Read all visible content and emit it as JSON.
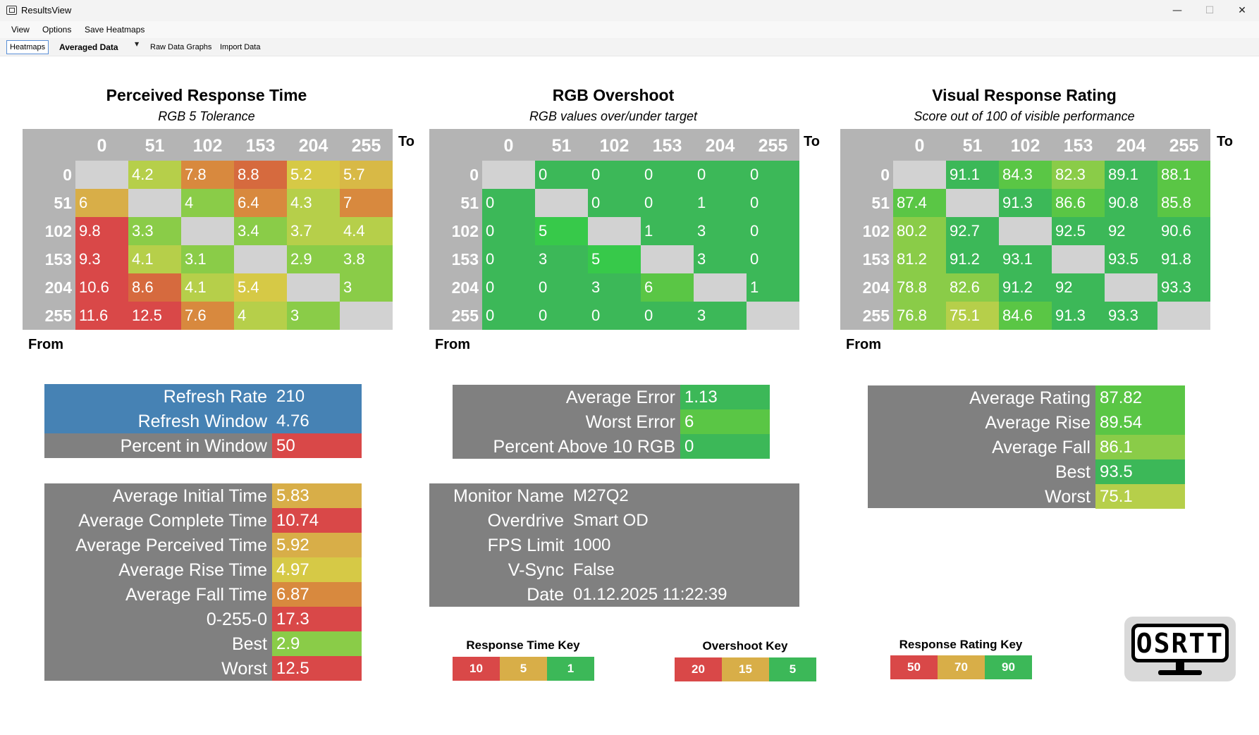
{
  "window": {
    "title": "ResultsView",
    "minimize_icon": "minimize-icon",
    "maximize_icon": "maximize-icon",
    "close_icon": "close-icon"
  },
  "menu": [
    "View",
    "Options",
    "Save Heatmaps"
  ],
  "toolbar": {
    "heatmaps": "Heatmaps",
    "mode": "Averaged Data",
    "raw": "Raw Data Graphs",
    "import": "Import Data"
  },
  "colors": {
    "gray_header": "#b4b4b4",
    "blank": "#d2d2d2",
    "stat_bg": "#808080",
    "blue": "#4682b4",
    "red": "#d94848",
    "orange": "#d8893e",
    "amber": "#d8ae48",
    "yellow": "#d6c946",
    "yellowgreen": "#b6cf4a",
    "lightgreen": "#8acc48",
    "midgreen": "#5ac645",
    "green": "#3cb858",
    "brightgreen": "#37c94a"
  },
  "heatmaps": {
    "headers": [
      "0",
      "51",
      "102",
      "153",
      "204",
      "255"
    ],
    "to_label": "To",
    "from_label": "From",
    "perceived": {
      "title": "Perceived Response Time",
      "subtitle": "RGB 5 Tolerance",
      "rows": [
        [
          null,
          "4.2",
          "7.8",
          "8.8",
          "5.2",
          "5.7"
        ],
        [
          "6",
          null,
          "4",
          "6.4",
          "4.3",
          "7"
        ],
        [
          "9.8",
          "3.3",
          null,
          "3.4",
          "3.7",
          "4.4"
        ],
        [
          "9.3",
          "4.1",
          "3.1",
          null,
          "2.9",
          "3.8"
        ],
        [
          "10.6",
          "8.6",
          "4.1",
          "5.4",
          null,
          "3"
        ],
        [
          "11.6",
          "12.5",
          "7.6",
          "4",
          "3",
          null
        ]
      ]
    },
    "overshoot": {
      "title": "RGB Overshoot",
      "subtitle": "RGB values over/under target",
      "rows": [
        [
          null,
          "0",
          "0",
          "0",
          "0",
          "0"
        ],
        [
          "0",
          null,
          "0",
          "0",
          "1",
          "0"
        ],
        [
          "0",
          "5",
          null,
          "1",
          "3",
          "0"
        ],
        [
          "0",
          "3",
          "5",
          null,
          "3",
          "0"
        ],
        [
          "0",
          "0",
          "3",
          "6",
          null,
          "1"
        ],
        [
          "0",
          "0",
          "0",
          "0",
          "3",
          null
        ]
      ]
    },
    "rating": {
      "title": "Visual Response Rating",
      "subtitle": "Score out of 100 of visible performance",
      "rows": [
        [
          null,
          "91.1",
          "84.3",
          "82.3",
          "89.1",
          "88.1"
        ],
        [
          "87.4",
          null,
          "91.3",
          "86.6",
          "90.8",
          "85.8"
        ],
        [
          "80.2",
          "92.7",
          null,
          "92.5",
          "92",
          "90.6"
        ],
        [
          "81.2",
          "91.2",
          "93.1",
          null,
          "93.5",
          "91.8"
        ],
        [
          "78.8",
          "82.6",
          "91.2",
          "92",
          null,
          "93.3"
        ],
        [
          "76.8",
          "75.1",
          "84.6",
          "91.3",
          "93.3",
          null
        ]
      ]
    }
  },
  "refresh": [
    {
      "label": "Refresh Rate",
      "value": "210"
    },
    {
      "label": "Refresh Window",
      "value": "4.76"
    },
    {
      "label": "Percent in Window",
      "value": "50"
    }
  ],
  "response_stats": [
    {
      "label": "Average Initial Time",
      "value": "5.83"
    },
    {
      "label": "Average Complete Time",
      "value": "10.74"
    },
    {
      "label": "Average Perceived Time",
      "value": "5.92"
    },
    {
      "label": "Average Rise Time",
      "value": "4.97"
    },
    {
      "label": "Average Fall Time",
      "value": "6.87"
    },
    {
      "label": "0-255-0",
      "value": "17.3"
    },
    {
      "label": "Best",
      "value": "2.9"
    },
    {
      "label": "Worst",
      "value": "12.5"
    }
  ],
  "overshoot_stats": [
    {
      "label": "Average Error",
      "value": "1.13"
    },
    {
      "label": "Worst Error",
      "value": "6"
    },
    {
      "label": "Percent Above 10 RGB",
      "value": "0"
    }
  ],
  "monitor": [
    {
      "label": "Monitor Name",
      "value": "M27Q2"
    },
    {
      "label": "Overdrive",
      "value": "Smart OD"
    },
    {
      "label": "FPS Limit",
      "value": "1000"
    },
    {
      "label": "V-Sync",
      "value": "False"
    },
    {
      "label": "Date",
      "value": "01.12.2025 11:22:39"
    }
  ],
  "rating_stats": [
    {
      "label": "Average Rating",
      "value": "87.82"
    },
    {
      "label": "Average Rise",
      "value": "89.54"
    },
    {
      "label": "Average Fall",
      "value": "86.1"
    },
    {
      "label": "Best",
      "value": "93.5"
    },
    {
      "label": "Worst",
      "value": "75.1"
    }
  ],
  "keys": {
    "response": {
      "title": "Response Time Key",
      "values": [
        "10",
        "5",
        "1"
      ]
    },
    "overshoot": {
      "title": "Overshoot Key",
      "values": [
        "20",
        "15",
        "5"
      ]
    },
    "rating": {
      "title": "Response Rating Key",
      "values": [
        "50",
        "70",
        "90"
      ]
    }
  },
  "logo": {
    "text": "OSRTT",
    "icon": "monitor-logo-icon"
  }
}
